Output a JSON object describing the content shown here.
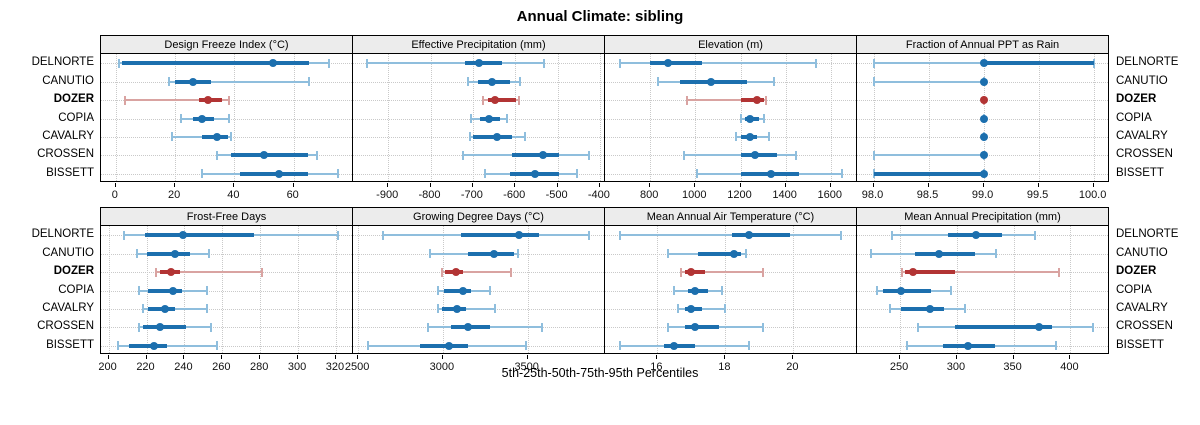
{
  "title": "Annual Climate: sibling",
  "caption": "5th-25th-50th-75th-95th Percentiles",
  "stations": [
    "DELNORTE",
    "CANUTIO",
    "DOZER",
    "COPIA",
    "CAVALRY",
    "CROSSEN",
    "BISSETT"
  ],
  "highlight_station": "DOZER",
  "colors": {
    "blue": "#1c6fae",
    "blue_light": "#8fbedd",
    "red": "#b23434",
    "red_light": "#d9a3a1",
    "grid": "#c9c9c9",
    "strip_bg": "#ececec",
    "border": "#000000"
  },
  "chart_data": {
    "type": "scatter",
    "subtype": "percentile-interval-lattice",
    "percentiles": [
      5,
      25,
      50,
      75,
      95
    ],
    "legend_note": "dot = 50th percentile, thick bar = 25th-75th, light bar with caps = 5th-95th",
    "rows_top_to_bottom": [
      "DELNORTE",
      "CANUTIO",
      "DOZER",
      "COPIA",
      "CAVALRY",
      "CROSSEN",
      "BISSETT"
    ],
    "panels": [
      {
        "title": "Design Freeze Index (°C)",
        "xlim": [
          -5,
          80
        ],
        "ticks": [
          0,
          20,
          40,
          60
        ],
        "tick_labels": [
          "0",
          "20",
          "40",
          "60"
        ],
        "series": {
          "DELNORTE": [
            1,
            2,
            53,
            65,
            72
          ],
          "CANUTIO": [
            18,
            20,
            26,
            32,
            65
          ],
          "DOZER": [
            3,
            28,
            31,
            36,
            38
          ],
          "COPIA": [
            22,
            26,
            29,
            33,
            38
          ],
          "CAVALRY": [
            19,
            29,
            34,
            38,
            39
          ],
          "CROSSEN": [
            34,
            39,
            50,
            65,
            68
          ],
          "BISSETT": [
            29,
            42,
            55,
            65,
            75
          ]
        }
      },
      {
        "title": "Effective Precipitation (mm)",
        "xlim": [
          -983,
          -388
        ],
        "ticks": [
          -900,
          -800,
          -700,
          -600,
          -500,
          -400
        ],
        "tick_labels": [
          "-900",
          "-800",
          "-700",
          "-600",
          "-500",
          "-400"
        ],
        "series": {
          "DELNORTE": [
            -949,
            -718,
            -685,
            -631,
            -531
          ],
          "CANUTIO": [
            -712,
            -688,
            -656,
            -612,
            -588
          ],
          "DOZER": [
            -676,
            -665,
            -647,
            -597,
            -592
          ],
          "COPIA": [
            -705,
            -683,
            -663,
            -635,
            -619
          ],
          "CAVALRY": [
            -708,
            -700,
            -642,
            -608,
            -578
          ],
          "CROSSEN": [
            -723,
            -608,
            -534,
            -497,
            -426
          ],
          "BISSETT": [
            -671,
            -612,
            -554,
            -497,
            -454
          ]
        }
      },
      {
        "title": "Elevation (m)",
        "xlim": [
          600,
          1716
        ],
        "ticks": [
          800,
          1000,
          1200,
          1400,
          1600
        ],
        "tick_labels": [
          "800",
          "1000",
          "1200",
          "1400",
          "1600"
        ],
        "series": {
          "DELNORTE": [
            664,
            800,
            879,
            1030,
            1533
          ],
          "CANUTIO": [
            834,
            933,
            1067,
            1230,
            1348
          ],
          "DOZER": [
            963,
            1200,
            1274,
            1305,
            1311
          ],
          "COPIA": [
            1200,
            1218,
            1241,
            1280,
            1304
          ],
          "CAVALRY": [
            1178,
            1200,
            1244,
            1274,
            1326
          ],
          "CROSSEN": [
            948,
            1200,
            1262,
            1363,
            1444
          ],
          "BISSETT": [
            1009,
            1200,
            1335,
            1460,
            1650
          ]
        }
      },
      {
        "title": "Fraction of Annual PPT as Rain",
        "xlim": [
          97.85,
          100.14
        ],
        "ticks": [
          98.0,
          98.5,
          99.0,
          99.5,
          100.0
        ],
        "tick_labels": [
          "98.0",
          "98.5",
          "99.0",
          "99.5",
          "100.0"
        ],
        "series": {
          "DELNORTE": [
            98,
            99,
            99,
            100,
            100
          ],
          "CANUTIO": [
            98,
            99,
            99,
            99,
            99
          ],
          "DOZER": [
            99,
            99,
            99,
            99,
            99
          ],
          "COPIA": [
            99,
            99,
            99,
            99,
            99
          ],
          "CAVALRY": [
            99,
            99,
            99,
            99,
            99
          ],
          "CROSSEN": [
            98,
            99,
            99,
            99,
            99
          ],
          "BISSETT": [
            98,
            98,
            99,
            99,
            99
          ]
        }
      },
      {
        "title": "Frost-Free Days",
        "xlim": [
          196,
          329
        ],
        "ticks": [
          200,
          220,
          240,
          260,
          280,
          300,
          320
        ],
        "tick_labels": [
          "200",
          "220",
          "240",
          "260",
          "280",
          "300",
          "320"
        ],
        "series": {
          "DELNORTE": [
            208,
            219,
            239,
            277,
            321
          ],
          "CANUTIO": [
            215,
            220,
            235,
            243,
            253
          ],
          "DOZER": [
            225,
            227,
            233,
            238,
            281
          ],
          "COPIA": [
            216,
            221,
            234,
            239,
            252
          ],
          "CAVALRY": [
            218,
            221,
            230,
            235,
            252
          ],
          "CROSSEN": [
            216,
            218,
            227,
            241,
            254
          ],
          "BISSETT": [
            205,
            211,
            224,
            231,
            257
          ]
        }
      },
      {
        "title": "Growing Degree Days (°C)",
        "xlim": [
          2470,
          3956
        ],
        "ticks": [
          2500,
          3000,
          3500
        ],
        "tick_labels": [
          "2500",
          "3000",
          "3500"
        ],
        "series": {
          "DELNORTE": [
            2646,
            3104,
            3449,
            3567,
            3863
          ],
          "CANUTIO": [
            2925,
            3145,
            3300,
            3420,
            3440
          ],
          "DOZER": [
            2995,
            3015,
            3080,
            3120,
            3400
          ],
          "COPIA": [
            2970,
            3005,
            3120,
            3165,
            3275
          ],
          "CAVALRY": [
            2970,
            2995,
            3085,
            3135,
            3305
          ],
          "CROSSEN": [
            2910,
            3045,
            3145,
            3280,
            3585
          ],
          "BISSETT": [
            2560,
            2865,
            3035,
            3145,
            3490
          ]
        }
      },
      {
        "title": "Mean Annual Air Temperature (°C)",
        "xlim": [
          14.46,
          21.87
        ],
        "ticks": [
          16,
          18,
          20
        ],
        "tick_labels": [
          "16",
          "18",
          "20"
        ],
        "series": {
          "DELNORTE": [
            14.9,
            18.2,
            18.7,
            19.9,
            21.4
          ],
          "CANUTIO": [
            16.3,
            17.2,
            18.25,
            18.45,
            18.6
          ],
          "DOZER": [
            16.7,
            16.8,
            17.0,
            17.4,
            19.1
          ],
          "COPIA": [
            16.5,
            16.9,
            17.1,
            17.5,
            17.9
          ],
          "CAVALRY": [
            16.6,
            16.8,
            17.0,
            17.3,
            18.0
          ],
          "CROSSEN": [
            16.3,
            16.8,
            17.1,
            17.8,
            19.1
          ],
          "BISSETT": [
            14.9,
            16.2,
            16.5,
            17.1,
            18.7
          ]
        }
      },
      {
        "title": "Mean Annual Precipitation (mm)",
        "xlim": [
          212,
          434
        ],
        "ticks": [
          250,
          300,
          350,
          400
        ],
        "tick_labels": [
          "250",
          "300",
          "350",
          "400"
        ],
        "series": {
          "DELNORTE": [
            243,
            292,
            317,
            340,
            369
          ],
          "CANUTIO": [
            224,
            263,
            284,
            316,
            334
          ],
          "DOZER": [
            252,
            254,
            261,
            298,
            390
          ],
          "COPIA": [
            230,
            235,
            251,
            277,
            295
          ],
          "CAVALRY": [
            241,
            251,
            276,
            289,
            307
          ],
          "CROSSEN": [
            266,
            298,
            372,
            384,
            420
          ],
          "BISSETT": [
            256,
            288,
            310,
            334,
            387
          ]
        }
      }
    ]
  }
}
